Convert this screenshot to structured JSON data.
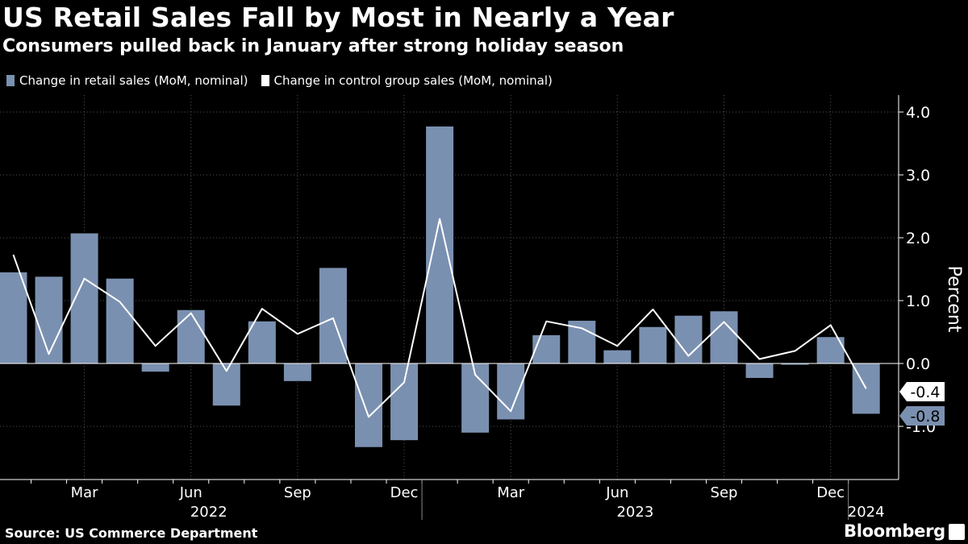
{
  "header": {
    "title": "US Retail Sales Fall by Most in Nearly a Year",
    "subtitle": "Consumers pulled back in January after strong holiday season"
  },
  "footer": {
    "source": "Source: US Commerce Department",
    "brand": "Bloomberg"
  },
  "colors": {
    "background": "#000000",
    "bar": "#7a90b0",
    "line": "#ffffff",
    "grid": "#555555",
    "label_badge_line": "#ffffff",
    "label_badge_bar": "#7a90b0"
  },
  "chart_data": {
    "type": "bar",
    "categories": [
      "2022-01",
      "2022-02",
      "2022-03",
      "2022-04",
      "2022-05",
      "2022-06",
      "2022-07",
      "2022-08",
      "2022-09",
      "2022-10",
      "2022-11",
      "2022-12",
      "2023-01",
      "2023-02",
      "2023-03",
      "2023-04",
      "2023-05",
      "2023-06",
      "2023-07",
      "2023-08",
      "2023-09",
      "2023-10",
      "2023-11",
      "2023-12",
      "2024-01"
    ],
    "series": [
      {
        "name": "Change in retail sales (MoM, nominal)",
        "kind": "bar",
        "values": [
          1.45,
          1.38,
          2.07,
          1.35,
          -0.13,
          0.85,
          -0.67,
          0.67,
          -0.28,
          1.52,
          -1.33,
          -1.22,
          3.77,
          -1.1,
          -0.89,
          0.45,
          0.68,
          0.21,
          0.58,
          0.76,
          0.83,
          -0.23,
          -0.02,
          0.42,
          -0.8
        ]
      },
      {
        "name": "Change in control group sales (MoM, nominal)",
        "kind": "line",
        "values": [
          1.73,
          0.15,
          1.35,
          0.98,
          0.28,
          0.8,
          -0.12,
          0.87,
          0.47,
          0.72,
          -0.85,
          -0.3,
          2.3,
          -0.18,
          -0.76,
          0.67,
          0.56,
          0.28,
          0.86,
          0.12,
          0.66,
          0.07,
          0.2,
          0.61,
          -0.4
        ]
      }
    ],
    "ylabel": "Percent",
    "ylim": [
      -1.8,
      4.2
    ],
    "yticks": [
      {
        "value": 4.0,
        "label": "4.0"
      },
      {
        "value": 3.0,
        "label": "3.0"
      },
      {
        "value": 2.0,
        "label": "2.0"
      },
      {
        "value": 1.0,
        "label": "1.0"
      },
      {
        "value": 0.0,
        "label": "0.0"
      },
      {
        "value": -1.0,
        "label": "-1.0"
      }
    ],
    "xticks": [
      {
        "index": 2,
        "label": "Mar"
      },
      {
        "index": 5,
        "label": "Jun"
      },
      {
        "index": 8,
        "label": "Sep"
      },
      {
        "index": 11,
        "label": "Dec"
      },
      {
        "index": 14,
        "label": "Mar"
      },
      {
        "index": 17,
        "label": "Jun"
      },
      {
        "index": 20,
        "label": "Sep"
      },
      {
        "index": 23,
        "label": "Dec"
      }
    ],
    "year_labels": [
      {
        "label": "2022",
        "center_index": 5.5
      },
      {
        "label": "2023",
        "center_index": 17.5
      },
      {
        "label": "2024",
        "center_index": 24.0
      }
    ],
    "year_separators": [
      11.5,
      23.5
    ],
    "last_value_labels": [
      {
        "series": 1,
        "label": "-0.4",
        "value": -0.4
      },
      {
        "series": 0,
        "label": "-0.8",
        "value": -0.8
      }
    ],
    "grid": true,
    "legend": "top-left"
  }
}
